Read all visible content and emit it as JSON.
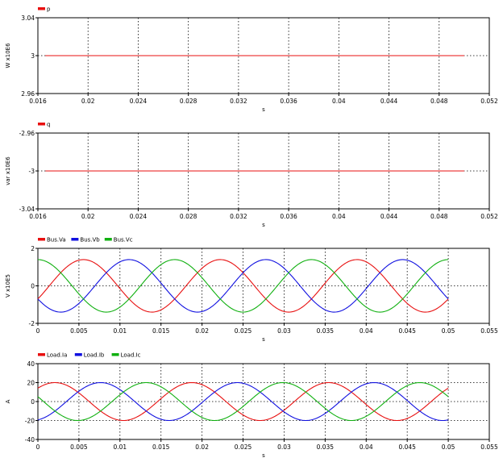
{
  "chart_data": [
    {
      "type": "line",
      "legend": [
        {
          "label": "p",
          "color": "#e81010"
        }
      ],
      "xlabel": "s",
      "ylabel": "W x10E6",
      "xlim": [
        0.016,
        0.052
      ],
      "ylim": [
        2.96,
        3.04
      ],
      "xticks": [
        "0.016",
        "0.02",
        "0.024",
        "0.028",
        "0.032",
        "0.036",
        "0.04",
        "0.044",
        "0.048",
        "0.052"
      ],
      "yticks": [
        "2.96",
        "3",
        "3.04"
      ],
      "gridlines": "dotted",
      "series": [
        {
          "name": "p",
          "color": "#e81010",
          "x": [
            0.0166,
            0.05
          ],
          "y": [
            3.0,
            3.0
          ]
        }
      ]
    },
    {
      "type": "line",
      "legend": [
        {
          "label": "q",
          "color": "#e81010"
        }
      ],
      "xlabel": "s",
      "ylabel": "var x10E6",
      "xlim": [
        0.016,
        0.052
      ],
      "ylim": [
        -3.04,
        -2.96
      ],
      "xticks": [
        "0.016",
        "0.02",
        "0.024",
        "0.028",
        "0.032",
        "0.036",
        "0.04",
        "0.044",
        "0.048",
        "0.052"
      ],
      "yticks": [
        "-3.04",
        "-3",
        "-2.96"
      ],
      "gridlines": "dotted",
      "series": [
        {
          "name": "q",
          "color": "#e81010",
          "x": [
            0.0166,
            0.05
          ],
          "y": [
            -3.0,
            -3.0
          ]
        }
      ]
    },
    {
      "type": "line",
      "legend": [
        {
          "label": "Bus.Va",
          "color": "#e81010"
        },
        {
          "label": "Bus.Vb",
          "color": "#1010e0"
        },
        {
          "label": "Bus.Vc",
          "color": "#10b010"
        }
      ],
      "xlabel": "s",
      "ylabel": "V x10E5",
      "xlim": [
        0,
        0.055
      ],
      "ylim": [
        -2,
        2
      ],
      "xticks": [
        "0",
        "0.005",
        "0.01",
        "0.015",
        "0.02",
        "0.025",
        "0.03",
        "0.035",
        "0.04",
        "0.045",
        "0.05",
        "0.055"
      ],
      "yticks": [
        "-2",
        "0",
        "2"
      ],
      "gridlines": "dotted",
      "series": [
        {
          "name": "Bus.Va",
          "color": "#e81010",
          "amplitude": 1.4,
          "frequency_hz": 60,
          "phase_deg": -30,
          "x_range": [
            0,
            0.05
          ]
        },
        {
          "name": "Bus.Vb",
          "color": "#1010e0",
          "amplitude": 1.4,
          "frequency_hz": 60,
          "phase_deg": -150,
          "x_range": [
            0,
            0.05
          ]
        },
        {
          "name": "Bus.Vc",
          "color": "#10b010",
          "amplitude": 1.4,
          "frequency_hz": 60,
          "phase_deg": 90,
          "x_range": [
            0,
            0.05
          ]
        }
      ]
    },
    {
      "type": "line",
      "legend": [
        {
          "label": "Load.Ia",
          "color": "#e81010"
        },
        {
          "label": "Load.Ib",
          "color": "#1010e0"
        },
        {
          "label": "Load.Ic",
          "color": "#10b010"
        }
      ],
      "xlabel": "s",
      "ylabel": "A",
      "xlim": [
        0,
        0.055
      ],
      "ylim": [
        -40,
        40
      ],
      "xticks": [
        "0",
        "0.005",
        "0.01",
        "0.015",
        "0.02",
        "0.025",
        "0.03",
        "0.035",
        "0.04",
        "0.045",
        "0.05",
        "0.055"
      ],
      "yticks": [
        "-40",
        "-20",
        "0",
        "20",
        "40"
      ],
      "gridlines": "dotted",
      "series": [
        {
          "name": "Load.Ia",
          "color": "#e81010",
          "amplitude": 20,
          "frequency_hz": 60,
          "phase_deg": 45,
          "x_range": [
            0,
            0.05
          ]
        },
        {
          "name": "Load.Ib",
          "color": "#1010e0",
          "amplitude": 20,
          "frequency_hz": 60,
          "phase_deg": -75,
          "x_range": [
            0,
            0.05
          ]
        },
        {
          "name": "Load.Ic",
          "color": "#10b010",
          "amplitude": 20,
          "frequency_hz": 60,
          "phase_deg": 165,
          "x_range": [
            0,
            0.05
          ]
        }
      ]
    }
  ]
}
